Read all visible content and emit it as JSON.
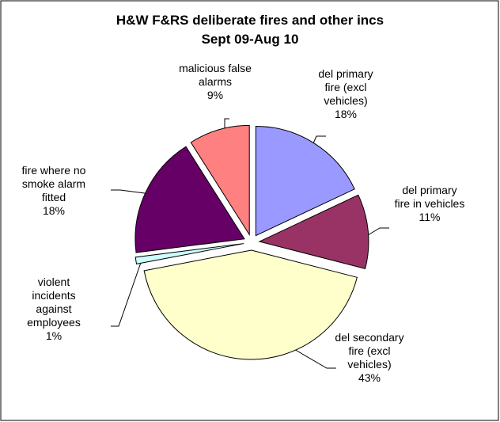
{
  "chart_data": {
    "type": "pie",
    "title": [
      "H&W F&RS deliberate fires and other incs",
      "Sept 09-Aug 10"
    ],
    "categories": [
      "del primary fire (excl vehicles)",
      "del primary fire in vehicles",
      "del secondary fire (excl vehicles)",
      "violent incidents against employees",
      "fire where no smoke alarm fitted",
      "malicious false alarms"
    ],
    "values": [
      18,
      11,
      43,
      1,
      18,
      9
    ],
    "value_labels": [
      "18%",
      "11%",
      "43%",
      "1%",
      "18%",
      "9%"
    ],
    "colors": [
      "#9999ff",
      "#993366",
      "#ffffcc",
      "#ccffff",
      "#660066",
      "#ff8080"
    ]
  }
}
